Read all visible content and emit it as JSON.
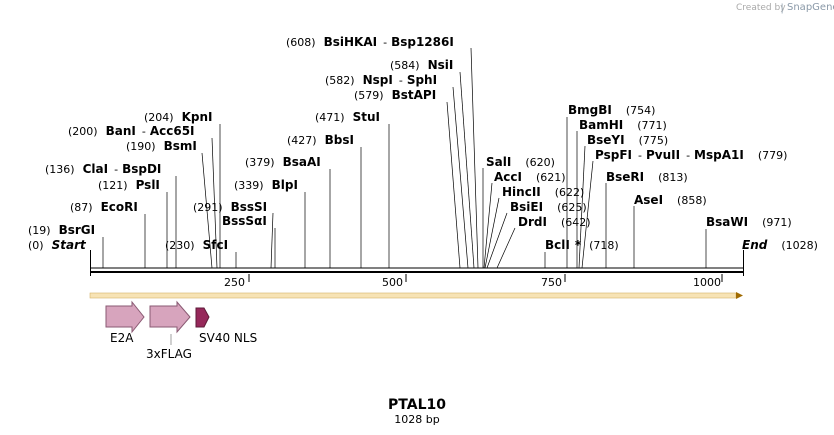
{
  "credit": {
    "created_by": "Created by",
    "brand": "SnapGene"
  },
  "title": "PTAL10",
  "subtitle": "1028 bp",
  "start_label": {
    "pos": "(0)",
    "name": "Start"
  },
  "end_label": {
    "name": "End",
    "pos": "(1028)"
  },
  "ticks": [
    "250",
    "500",
    "750",
    "1000"
  ],
  "sites": [
    {
      "pos": "(608)",
      "name": "BsiHKAI",
      "name2": "Bsp1286I"
    },
    {
      "pos": "(584)",
      "name": "NsiI"
    },
    {
      "pos": "(582)",
      "name": "NspI",
      "name2": "SphI"
    },
    {
      "pos": "(579)",
      "name": "BstAPI"
    },
    {
      "pos": "(471)",
      "name": "StuI"
    },
    {
      "pos": "(427)",
      "name": "BbsI"
    },
    {
      "pos": "(379)",
      "name": "BsaAI"
    },
    {
      "pos": "(339)",
      "name": "BlpI"
    },
    {
      "pos": "(291)",
      "name": "BssSI"
    },
    {
      "name": "BssSαI"
    },
    {
      "pos": "(204)",
      "name": "KpnI"
    },
    {
      "pos": "(200)",
      "name": "BanI",
      "name2": "Acc65I"
    },
    {
      "pos": "(190)",
      "name": "BsmI"
    },
    {
      "pos": "(136)",
      "name": "ClaI",
      "name2": "BspDI"
    },
    {
      "pos": "(121)",
      "name": "PslI"
    },
    {
      "pos": "(87)",
      "name": "EcoRI"
    },
    {
      "pos": "(19)",
      "name": "BsrGI"
    },
    {
      "pos": "(230)",
      "name": "SfcI"
    },
    {
      "name": "SalI",
      "pos": "(620)"
    },
    {
      "name": "AccI",
      "pos": "(621)"
    },
    {
      "name": "HincII",
      "pos": "(622)"
    },
    {
      "name": "BsiEI",
      "pos": "(625)"
    },
    {
      "name": "DrdI",
      "pos": "(642)"
    },
    {
      "name": "BclI",
      "mark": "*",
      "pos": "(718)"
    },
    {
      "name": "BmgBI",
      "pos": "(754)"
    },
    {
      "name": "BamHI",
      "pos": "(771)"
    },
    {
      "name": "BseYI",
      "pos": "(775)"
    },
    {
      "name": "PspFI",
      "name2": "PvuII",
      "name3": "MspA1I",
      "pos": "(779)"
    },
    {
      "name": "BseRI",
      "pos": "(813)"
    },
    {
      "name": "AseI",
      "pos": "(858)"
    },
    {
      "name": "BsaWI",
      "pos": "(971)"
    }
  ],
  "features": [
    {
      "label": "E2A"
    },
    {
      "label": "3xFLAG"
    },
    {
      "label": "SV40 NLS"
    }
  ],
  "colors": {
    "feature_arrow": "#d7a4bd",
    "feature_stroke": "#8a5a73",
    "nls": "#96285a",
    "orf_bar": "#f7e3b5",
    "orf_arrow": "#a06a00"
  }
}
